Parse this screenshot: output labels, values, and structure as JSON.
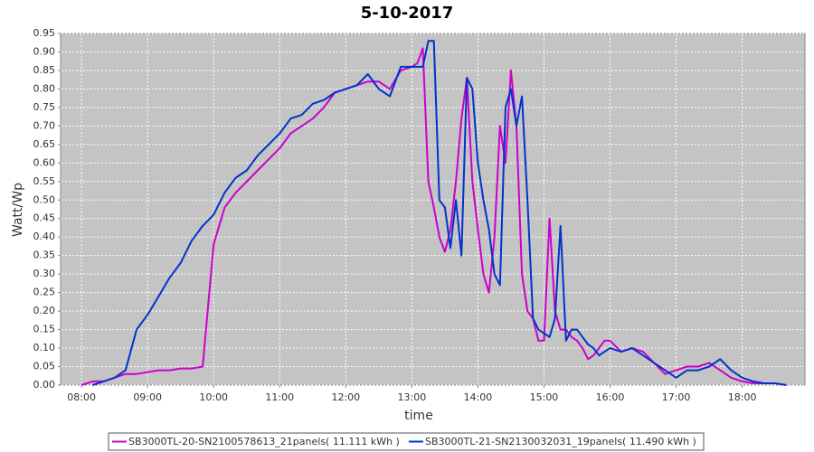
{
  "chart_data": {
    "type": "line",
    "title": "5-10-2017",
    "xlabel": "time",
    "ylabel": "Watt/Wp",
    "x": [
      "08:00",
      "08:10",
      "08:20",
      "08:30",
      "08:40",
      "08:50",
      "09:00",
      "09:10",
      "09:20",
      "09:30",
      "09:40",
      "09:50",
      "10:00",
      "10:10",
      "10:20",
      "10:30",
      "10:40",
      "10:50",
      "11:00",
      "11:10",
      "11:20",
      "11:30",
      "11:40",
      "11:50",
      "12:00",
      "12:10",
      "12:20",
      "12:30",
      "12:40",
      "12:50",
      "13:00",
      "13:05",
      "13:10",
      "13:15",
      "13:20",
      "13:25",
      "13:30",
      "13:35",
      "13:40",
      "13:45",
      "13:50",
      "13:55",
      "14:00",
      "14:05",
      "14:10",
      "14:15",
      "14:20",
      "14:25",
      "14:30",
      "14:35",
      "14:40",
      "14:45",
      "14:50",
      "14:55",
      "15:00",
      "15:05",
      "15:10",
      "15:15",
      "15:20",
      "15:25",
      "15:30",
      "15:35",
      "15:40",
      "15:45",
      "15:50",
      "15:55",
      "16:00",
      "16:10",
      "16:20",
      "16:30",
      "16:40",
      "16:50",
      "17:00",
      "17:10",
      "17:20",
      "17:30",
      "17:40",
      "17:50",
      "18:00",
      "18:10",
      "18:20",
      "18:30",
      "18:40"
    ],
    "series": [
      {
        "name": "SB3000TL-20-SN2100578613_21panels( 11.111 kWh )",
        "color": "#cc00cc",
        "values": [
          0.0,
          0.01,
          0.01,
          0.02,
          0.03,
          0.03,
          0.035,
          0.04,
          0.04,
          0.045,
          0.045,
          0.05,
          0.38,
          0.48,
          0.52,
          0.55,
          0.58,
          0.61,
          0.64,
          0.68,
          0.7,
          0.72,
          0.75,
          0.79,
          0.8,
          0.81,
          0.82,
          0.82,
          0.8,
          0.85,
          0.86,
          0.87,
          0.91,
          0.55,
          0.48,
          0.4,
          0.36,
          0.42,
          0.55,
          0.72,
          0.83,
          0.55,
          0.42,
          0.3,
          0.25,
          0.4,
          0.7,
          0.6,
          0.85,
          0.7,
          0.3,
          0.2,
          0.18,
          0.12,
          0.12,
          0.45,
          0.2,
          0.15,
          0.15,
          0.13,
          0.12,
          0.1,
          0.07,
          0.08,
          0.1,
          0.12,
          0.12,
          0.09,
          0.1,
          0.09,
          0.06,
          0.03,
          0.04,
          0.05,
          0.05,
          0.06,
          0.04,
          0.02,
          0.01,
          0.005,
          0.005,
          0.005,
          0.0
        ]
      },
      {
        "name": "SB3000TL-21-SN2130032031_19panels( 11.490 kWh )",
        "color": "#0033cc",
        "values": [
          null,
          0.0,
          0.01,
          0.02,
          0.04,
          0.15,
          0.19,
          0.24,
          0.29,
          0.33,
          0.39,
          0.43,
          0.46,
          0.52,
          0.56,
          0.58,
          0.62,
          0.65,
          0.68,
          0.72,
          0.73,
          0.76,
          0.77,
          0.79,
          0.8,
          0.81,
          0.84,
          0.8,
          0.78,
          0.86,
          0.86,
          0.86,
          0.86,
          0.93,
          0.93,
          0.5,
          0.48,
          0.37,
          0.5,
          0.35,
          0.83,
          0.8,
          0.6,
          0.5,
          0.42,
          0.3,
          0.27,
          0.75,
          0.8,
          0.7,
          0.78,
          0.5,
          0.18,
          0.15,
          0.14,
          0.13,
          0.18,
          0.43,
          0.12,
          0.15,
          0.15,
          0.13,
          0.11,
          0.1,
          0.08,
          0.09,
          0.1,
          0.09,
          0.1,
          0.08,
          0.06,
          0.04,
          0.02,
          0.04,
          0.04,
          0.05,
          0.07,
          0.04,
          0.02,
          0.01,
          0.005,
          0.005,
          0.0
        ]
      }
    ],
    "xlim": [
      "07:41",
      "18:57"
    ],
    "xticks": [
      "08:00",
      "09:00",
      "10:00",
      "11:00",
      "12:00",
      "13:00",
      "14:00",
      "15:00",
      "16:00",
      "17:00",
      "18:00"
    ],
    "ylim": [
      0,
      0.95
    ],
    "yticks": [
      {
        "value": 0,
        "label": "0.00"
      },
      {
        "value": 0.05,
        "label": "0.05"
      },
      {
        "value": 0.1,
        "label": "0.10"
      },
      {
        "value": 0.15,
        "label": "0.15"
      },
      {
        "value": 0.2,
        "label": "0.20"
      },
      {
        "value": 0.25,
        "label": "0.25"
      },
      {
        "value": 0.3,
        "label": "0.30"
      },
      {
        "value": 0.35,
        "label": "0.35"
      },
      {
        "value": 0.4,
        "label": "0.40"
      },
      {
        "value": 0.45,
        "label": "0.45"
      },
      {
        "value": 0.5,
        "label": "0.50"
      },
      {
        "value": 0.55,
        "label": "0.55"
      },
      {
        "value": 0.6,
        "label": "0.60"
      },
      {
        "value": 0.65,
        "label": "0.65"
      },
      {
        "value": 0.7,
        "label": "0.70"
      },
      {
        "value": 0.75,
        "label": "0.75"
      },
      {
        "value": 0.8,
        "label": "0.80"
      },
      {
        "value": 0.85,
        "label": "0.85"
      },
      {
        "value": 0.9,
        "label": "0.90"
      },
      {
        "value": 0.95,
        "label": "0.95"
      }
    ],
    "grid": true,
    "legend": "bottom"
  }
}
